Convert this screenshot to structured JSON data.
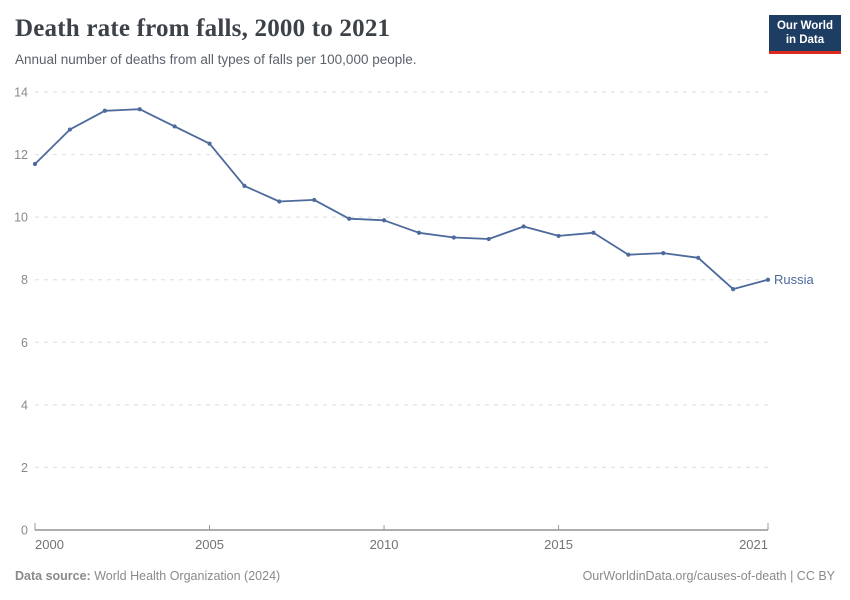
{
  "header": {
    "title": "Death rate from falls, 2000 to 2021",
    "subtitle": "Annual number of deaths from all types of falls per 100,000 people.",
    "logo": {
      "line1": "Our World",
      "line2": "in Data",
      "bg_color": "#1d3d63",
      "accent_color": "#dc2a1e"
    }
  },
  "chart_data": {
    "type": "line",
    "title": "Death rate from falls, 2000 to 2021",
    "xlabel": "",
    "ylabel": "",
    "x": [
      2000,
      2001,
      2002,
      2003,
      2004,
      2005,
      2006,
      2007,
      2008,
      2009,
      2010,
      2011,
      2012,
      2013,
      2014,
      2015,
      2016,
      2017,
      2018,
      2019,
      2020,
      2021
    ],
    "series": [
      {
        "name": "Russia",
        "color": "#4C6A9C",
        "values": [
          11.7,
          12.8,
          13.4,
          13.45,
          12.9,
          12.35,
          11.0,
          10.5,
          10.55,
          9.95,
          9.9,
          9.5,
          9.35,
          9.3,
          9.7,
          9.4,
          9.5,
          8.8,
          8.85,
          8.7,
          7.7,
          8.0
        ]
      }
    ],
    "ylim": [
      0,
      14
    ],
    "yticks": [
      0,
      2,
      4,
      6,
      8,
      10,
      12,
      14
    ],
    "xtick_labels": [
      2000,
      2005,
      2010,
      2015,
      2021
    ],
    "grid": "horizontal-dashed",
    "legend_position": "end-of-line-label",
    "colors": {
      "grid": "#dedede",
      "axis": "#5b5b5b",
      "tick": "#9a9a9a",
      "y_label": "#8a8a8a",
      "x_label": "#737373"
    }
  },
  "footer": {
    "source_label": "Data source:",
    "source_value": " World Health Organization (2024)",
    "credit": "OurWorldinData.org/causes-of-death | CC BY"
  }
}
